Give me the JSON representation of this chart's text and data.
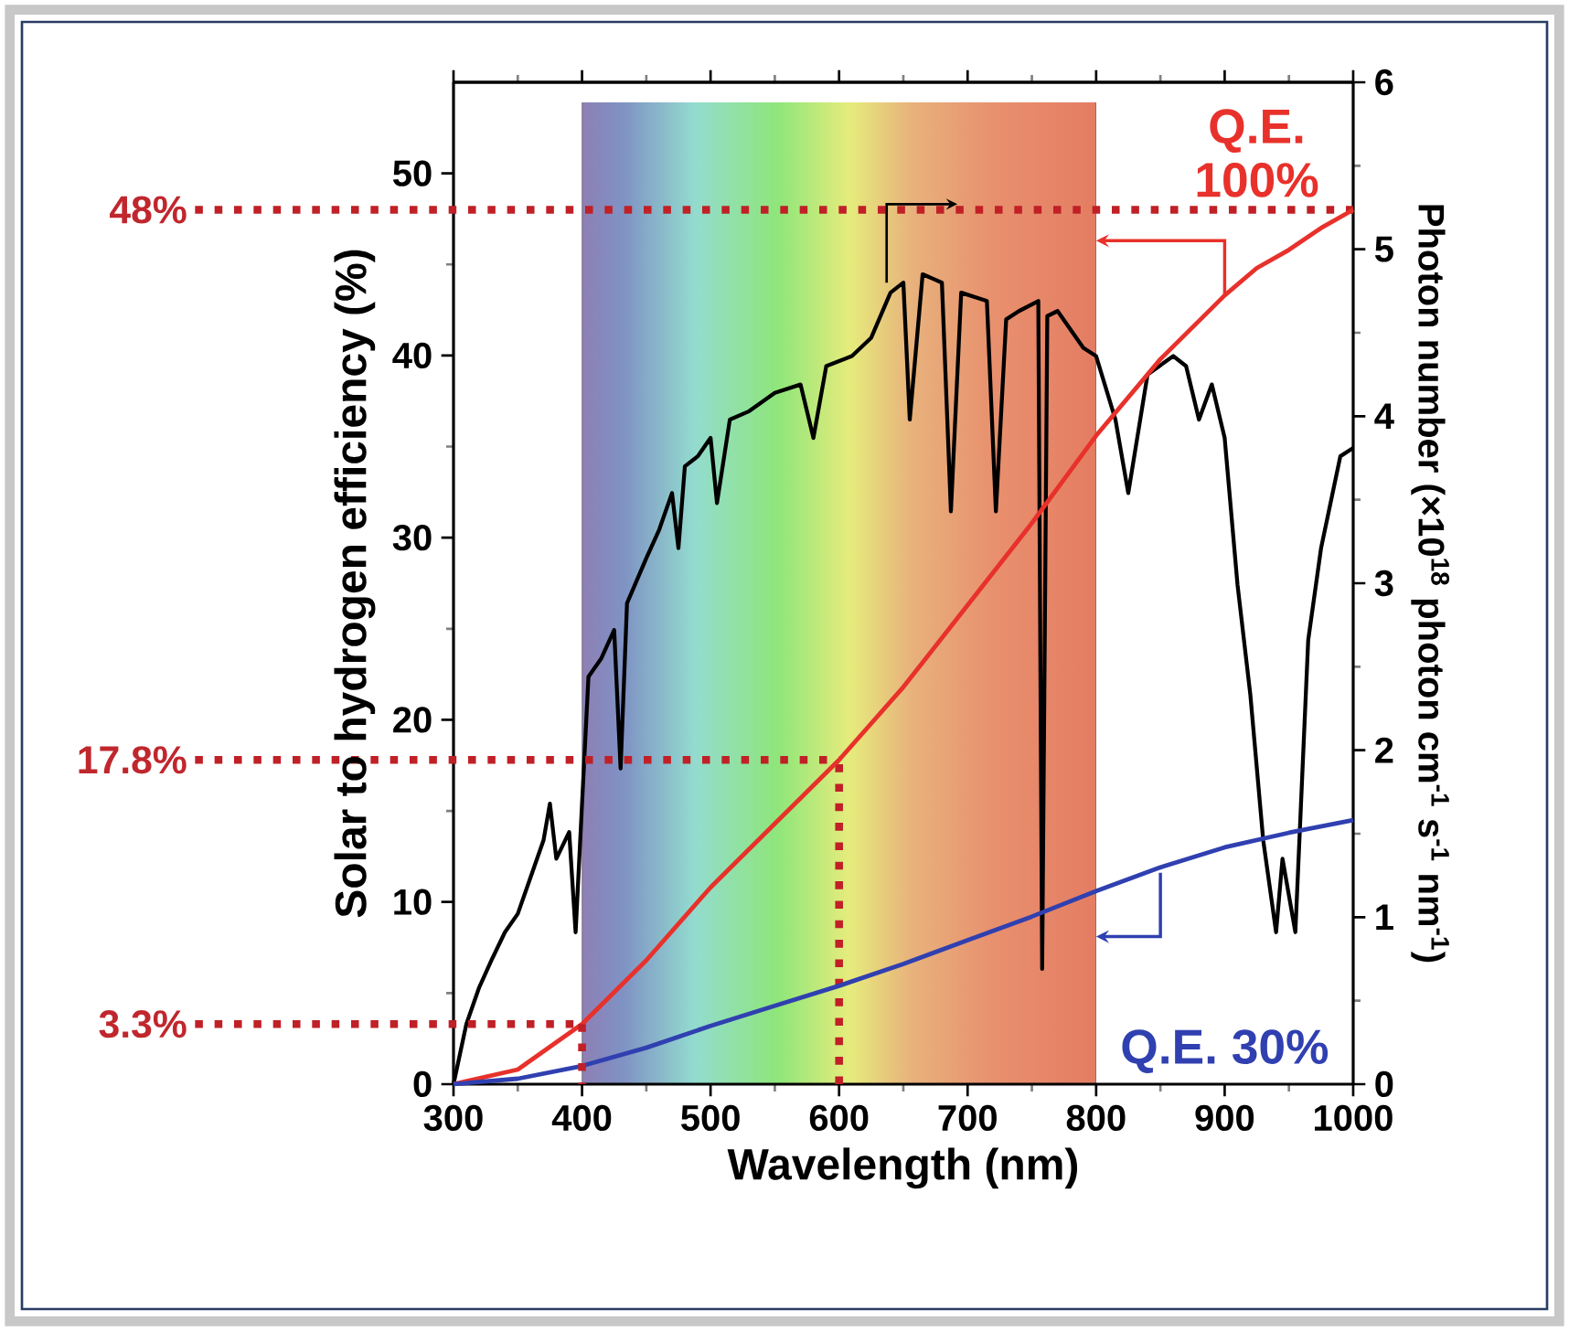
{
  "chart_data": {
    "type": "line",
    "xlabel": "Wavelength (nm)",
    "ylabel": "Solar to hydrogen efficiency (%)",
    "y2label": "Photon number (×10$^{18}$ photon cm$^{-1}$ s$^{-1}$ nm$^{-1}$)",
    "xlim": [
      300,
      1000
    ],
    "xticks": [
      300,
      400,
      500,
      600,
      700,
      800,
      900,
      1000
    ],
    "ylim": [
      0,
      55
    ],
    "yticks": [
      0,
      10,
      20,
      30,
      40,
      50
    ],
    "y2lim": [
      0,
      6
    ],
    "y2ticks": [
      0,
      1,
      2,
      3,
      4,
      5,
      6
    ],
    "ref_lines": [
      {
        "axis": "x",
        "value": 600,
        "color": "#c02026",
        "line_style": "dotted"
      }
    ],
    "bands": [
      {
        "axis": "x",
        "from": 400,
        "to": 800
      }
    ],
    "series": [
      {
        "axis": "y2",
        "color": "#000000",
        "x": [
          300,
          310,
          320,
          330,
          340,
          350,
          360,
          370,
          375,
          380,
          390,
          395,
          400,
          405,
          415,
          425,
          430,
          435,
          450,
          460,
          470,
          475,
          480,
          490,
          500,
          505,
          515,
          530,
          550,
          570,
          580,
          590,
          610,
          625,
          640,
          650,
          655,
          665,
          680,
          687,
          695,
          715,
          722,
          730,
          740,
          755,
          758,
          762,
          770,
          790,
          800,
          815,
          825,
          840,
          860,
          870,
          880,
          890,
          900,
          910,
          920,
          930,
          940,
          945,
          955,
          965,
          975,
          990,
          1000
        ],
        "values": [
          0,
          0.36,
          0.58,
          0.75,
          0.91,
          1.02,
          1.24,
          1.46,
          1.68,
          1.35,
          1.51,
          0.91,
          1.68,
          2.44,
          2.55,
          2.72,
          1.89,
          2.88,
          3.15,
          3.32,
          3.54,
          3.21,
          3.7,
          3.76,
          3.87,
          3.48,
          3.98,
          4.03,
          4.14,
          4.19,
          3.87,
          4.3,
          4.36,
          4.47,
          4.74,
          4.8,
          3.98,
          4.85,
          4.8,
          3.43,
          4.74,
          4.69,
          3.43,
          4.58,
          4.63,
          4.69,
          0.69,
          4.6,
          4.63,
          4.41,
          4.36,
          3.98,
          3.54,
          4.25,
          4.36,
          4.3,
          3.98,
          4.19,
          3.87,
          2.99,
          2.33,
          1.46,
          0.91,
          1.35,
          0.91,
          2.66,
          3.21,
          3.76,
          3.81
        ]
      },
      {
        "name": "Q.E. 100%",
        "axis": "y",
        "color": "#e8312b",
        "x": [
          300,
          350,
          400,
          450,
          500,
          550,
          600,
          650,
          700,
          750,
          800,
          850,
          900,
          925,
          950,
          975,
          1000
        ],
        "values": [
          0,
          0.8,
          3.3,
          6.8,
          10.8,
          14.3,
          17.8,
          21.8,
          26.3,
          30.8,
          35.6,
          39.8,
          43.3,
          44.8,
          45.8,
          47,
          48
        ]
      },
      {
        "name": "Q.E. 30%",
        "axis": "y",
        "color": "#3040b0",
        "x": [
          300,
          350,
          400,
          450,
          500,
          550,
          600,
          650,
          700,
          750,
          800,
          850,
          900,
          950,
          1000
        ],
        "values": [
          0,
          0.3,
          1.0,
          2.0,
          3.2,
          4.3,
          5.4,
          6.6,
          7.9,
          9.2,
          10.6,
          11.9,
          13.0,
          13.8,
          14.5
        ]
      }
    ],
    "annotations": [
      {
        "text": "48%",
        "x": 1000,
        "y": 48
      },
      {
        "text": "17.8%",
        "x": 600,
        "y": 17.8
      },
      {
        "text": "3.3%",
        "x": 400,
        "y": 3.3
      }
    ]
  }
}
